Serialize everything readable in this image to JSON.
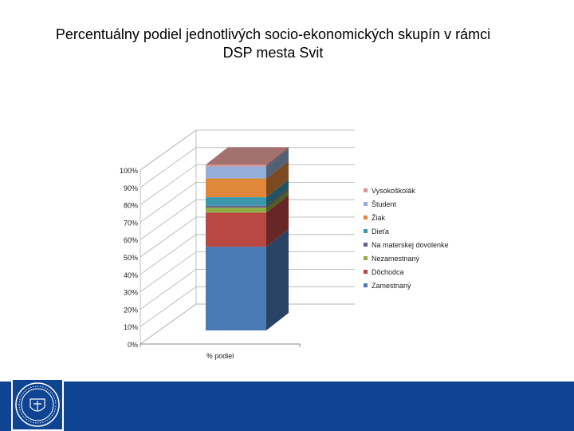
{
  "title_line1": "Percentuálny podiel jednotlivých socio-ekonomických skupín v rámci",
  "title_line2": "DSP mesta Svit",
  "colors": {
    "footer": "#0f4493"
  },
  "logo": {
    "text": "UNIVERSITAS ŽILINENSIS"
  },
  "chart_data": {
    "type": "bar",
    "stacked": true,
    "view": "3d",
    "categories": [
      "% podiel"
    ],
    "ylim": [
      0,
      100
    ],
    "yticks": [
      "0%",
      "10%",
      "20%",
      "30%",
      "40%",
      "50%",
      "60%",
      "70%",
      "80%",
      "90%",
      "100%"
    ],
    "legend_position": "right",
    "grid": true,
    "series": [
      {
        "name": "Zamestnaný",
        "values": [
          49
        ],
        "color": "#4a7ab5"
      },
      {
        "name": "Dôchodca",
        "values": [
          20
        ],
        "color": "#b94744"
      },
      {
        "name": "Nezamestnaný",
        "values": [
          3
        ],
        "color": "#8eab46"
      },
      {
        "name": "Na materskej dovolenke",
        "values": [
          1
        ],
        "color": "#6b5a8e"
      },
      {
        "name": "Dieťa",
        "values": [
          5
        ],
        "color": "#3c98ac"
      },
      {
        "name": "Žiak",
        "values": [
          11
        ],
        "color": "#e0873b"
      },
      {
        "name": "Študent",
        "values": [
          7
        ],
        "color": "#93aed8"
      },
      {
        "name": "Vysokoškolák",
        "values": [
          1
        ],
        "color": "#d99694"
      }
    ]
  }
}
